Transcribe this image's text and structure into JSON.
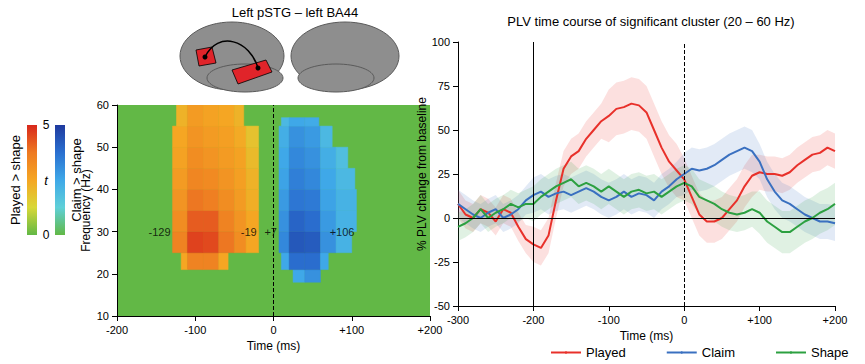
{
  "chart_data": [
    {
      "type": "heatmap",
      "title": "Left pSTG – left BA44",
      "x_label": "Time (ms)",
      "y_label": "Frequency (Hz)",
      "xlim": [
        -200,
        200
      ],
      "xticks": [
        -200,
        -100,
        0,
        {
          "value": 100,
          "label": "+100"
        },
        {
          "value": 200,
          "label": "+200"
        }
      ],
      "ylim": [
        10,
        60
      ],
      "yticks": [
        10,
        20,
        30,
        40,
        50,
        60
      ],
      "grid": false,
      "colorbar": {
        "title": "t",
        "range": [
          0,
          5
        ],
        "ticks": [
          0,
          5
        ]
      },
      "reference_lines": [
        {
          "x": 0,
          "line_style": "dashed"
        }
      ],
      "annotations": [
        {
          "x": -129,
          "y": 30,
          "text": "-129"
        },
        {
          "x": -19,
          "y": 30,
          "text": "-19"
        },
        {
          "x": 7,
          "y": 30,
          "text": "+7"
        },
        {
          "x": 106,
          "y": 30,
          "text": "+106"
        }
      ],
      "series": [
        {
          "name": "Played > shape",
          "cells": [
            [
              -118,
              -110,
              21,
              25,
              2.5
            ],
            [
              -110,
              -90,
              21,
              25,
              3.5
            ],
            [
              -90,
              -70,
              21,
              25,
              3.5
            ],
            [
              -70,
              -58,
              21,
              25,
              2.5
            ],
            [
              -129,
              -110,
              25,
              30,
              3.5
            ],
            [
              -110,
              -90,
              25,
              30,
              4.6
            ],
            [
              -90,
              -70,
              25,
              30,
              4.5
            ],
            [
              -70,
              -50,
              25,
              30,
              3.8
            ],
            [
              -50,
              -35,
              25,
              30,
              3.2
            ],
            [
              -35,
              -19,
              25,
              30,
              2.5
            ],
            [
              -129,
              -110,
              30,
              35,
              3.2
            ],
            [
              -110,
              -90,
              30,
              35,
              4.2
            ],
            [
              -90,
              -70,
              30,
              35,
              4.2
            ],
            [
              -70,
              -50,
              30,
              35,
              3.5
            ],
            [
              -50,
              -35,
              30,
              35,
              3.0
            ],
            [
              -35,
              -19,
              30,
              35,
              2.5
            ],
            [
              -129,
              -110,
              35,
              40,
              3.0
            ],
            [
              -110,
              -90,
              35,
              40,
              3.8
            ],
            [
              -90,
              -70,
              35,
              40,
              3.6
            ],
            [
              -70,
              -50,
              35,
              40,
              3.2
            ],
            [
              -50,
              -35,
              35,
              40,
              2.8
            ],
            [
              -35,
              -19,
              35,
              40,
              2.3
            ],
            [
              -129,
              -110,
              40,
              45,
              2.8
            ],
            [
              -110,
              -90,
              40,
              45,
              3.4
            ],
            [
              -90,
              -70,
              40,
              45,
              3.3
            ],
            [
              -70,
              -50,
              40,
              45,
              3.0
            ],
            [
              -50,
              -35,
              40,
              45,
              2.7
            ],
            [
              -35,
              -19,
              40,
              45,
              2.2
            ],
            [
              -129,
              -110,
              45,
              50,
              2.6
            ],
            [
              -110,
              -90,
              45,
              50,
              3.2
            ],
            [
              -90,
              -70,
              45,
              50,
              3.0
            ],
            [
              -70,
              -50,
              45,
              50,
              2.8
            ],
            [
              -50,
              -35,
              45,
              50,
              2.6
            ],
            [
              -35,
              -19,
              45,
              50,
              2.0
            ],
            [
              -129,
              -110,
              50,
              55,
              2.5
            ],
            [
              -110,
              -90,
              50,
              55,
              3.0
            ],
            [
              -90,
              -70,
              50,
              55,
              2.8
            ],
            [
              -70,
              -50,
              50,
              55,
              2.7
            ],
            [
              -50,
              -35,
              50,
              55,
              2.4
            ],
            [
              -35,
              -19,
              50,
              55,
              1.8
            ],
            [
              -124,
              -110,
              55,
              60,
              2.2
            ],
            [
              -110,
              -90,
              55,
              60,
              2.8
            ],
            [
              -90,
              -70,
              55,
              60,
              2.6
            ],
            [
              -70,
              -50,
              55,
              60,
              2.5
            ],
            [
              -50,
              -38,
              55,
              60,
              2.2
            ]
          ]
        },
        {
          "name": "Claim > shape",
          "cells": [
            [
              25,
              40,
              18,
              21,
              2.5
            ],
            [
              40,
              60,
              18,
              21,
              3.0
            ],
            [
              10,
              20,
              21,
              25,
              2.5
            ],
            [
              20,
              40,
              21,
              25,
              3.8
            ],
            [
              40,
              60,
              21,
              25,
              3.8
            ],
            [
              60,
              70,
              21,
              25,
              2.5
            ],
            [
              7,
              20,
              25,
              30,
              3.2
            ],
            [
              20,
              40,
              25,
              30,
              4.3
            ],
            [
              40,
              60,
              25,
              30,
              4.2
            ],
            [
              60,
              80,
              25,
              30,
              3.0
            ],
            [
              80,
              100,
              25,
              30,
              2.2
            ],
            [
              7,
              20,
              30,
              35,
              3.0
            ],
            [
              20,
              40,
              30,
              35,
              4.0
            ],
            [
              40,
              60,
              30,
              35,
              3.8
            ],
            [
              60,
              80,
              30,
              35,
              2.8
            ],
            [
              80,
              106,
              30,
              35,
              2.2
            ],
            [
              7,
              20,
              35,
              40,
              2.8
            ],
            [
              20,
              40,
              35,
              40,
              3.6
            ],
            [
              40,
              60,
              35,
              40,
              3.5
            ],
            [
              60,
              80,
              35,
              40,
              2.6
            ],
            [
              80,
              106,
              35,
              40,
              2.2
            ],
            [
              7,
              20,
              40,
              45,
              2.6
            ],
            [
              20,
              40,
              40,
              45,
              3.4
            ],
            [
              40,
              60,
              40,
              45,
              3.2
            ],
            [
              60,
              80,
              40,
              45,
              2.5
            ],
            [
              80,
              104,
              40,
              45,
              2.0
            ],
            [
              7,
              20,
              45,
              50,
              2.5
            ],
            [
              20,
              40,
              45,
              50,
              3.2
            ],
            [
              40,
              60,
              45,
              50,
              3.0
            ],
            [
              60,
              80,
              45,
              50,
              2.3
            ],
            [
              80,
              95,
              45,
              50,
              1.8
            ],
            [
              7,
              20,
              50,
              55,
              2.3
            ],
            [
              20,
              40,
              50,
              55,
              3.0
            ],
            [
              40,
              60,
              50,
              55,
              2.8
            ],
            [
              60,
              75,
              50,
              55,
              2.0
            ],
            [
              10,
              20,
              55,
              57,
              2.0
            ],
            [
              20,
              40,
              55,
              57,
              2.5
            ],
            [
              40,
              58,
              55,
              57,
              2.4
            ]
          ]
        }
      ]
    },
    {
      "type": "line",
      "title": "PLV time course of significant cluster (20 – 60 Hz)",
      "x_label": "Time (ms)",
      "y_label": "% PLV change from baseline",
      "xlim": [
        -300,
        200
      ],
      "xticks": [
        -300,
        -200,
        -100,
        0,
        {
          "value": 100,
          "label": "+100"
        },
        {
          "value": 200,
          "label": "+200"
        }
      ],
      "ylim": [
        -50,
        100
      ],
      "yticks": [
        -50,
        -25,
        0,
        25,
        50,
        75,
        100
      ],
      "grid": false,
      "legend": "bottom",
      "reference_lines": [
        {
          "x": -200,
          "line_style": "solid"
        },
        {
          "x": 0,
          "line_style": "dashed"
        },
        {
          "y": 0,
          "line_style": "solid"
        }
      ],
      "x": [
        -300,
        -290,
        -280,
        -270,
        -260,
        -250,
        -240,
        -230,
        -220,
        -210,
        -200,
        -190,
        -180,
        -170,
        -160,
        -150,
        -140,
        -130,
        -120,
        -110,
        -100,
        -90,
        -80,
        -70,
        -60,
        -50,
        -40,
        -30,
        -20,
        -10,
        0,
        10,
        20,
        30,
        40,
        50,
        60,
        70,
        80,
        90,
        100,
        110,
        120,
        130,
        140,
        150,
        160,
        170,
        180,
        190,
        200
      ],
      "series": [
        {
          "name": "Played",
          "color": "#e8302a",
          "values": [
            8,
            2,
            0,
            5,
            3,
            -2,
            5,
            3,
            -5,
            -12,
            -15,
            -17,
            -10,
            10,
            28,
            35,
            38,
            45,
            50,
            55,
            58,
            62,
            63,
            65,
            64,
            60,
            50,
            40,
            32,
            27,
            22,
            12,
            2,
            -2,
            -2,
            0,
            5,
            10,
            18,
            24,
            26,
            25,
            25,
            24,
            26,
            30,
            33,
            36,
            37,
            40,
            38
          ],
          "errors": [
            8,
            8,
            8,
            8,
            8,
            8,
            8,
            8,
            8,
            8,
            10,
            10,
            10,
            10,
            10,
            10,
            10,
            10,
            10,
            10,
            15,
            15,
            15,
            15,
            15,
            15,
            15,
            15,
            15,
            15,
            12,
            12,
            12,
            12,
            12,
            12,
            12,
            12,
            12,
            12,
            10,
            10,
            10,
            10,
            10,
            10,
            10,
            10,
            10,
            10,
            10
          ]
        },
        {
          "name": "Claim",
          "color": "#3a70c0",
          "values": [
            8,
            5,
            2,
            0,
            3,
            5,
            0,
            2,
            5,
            10,
            13,
            15,
            12,
            14,
            15,
            13,
            15,
            17,
            15,
            12,
            10,
            12,
            15,
            12,
            14,
            13,
            10,
            15,
            18,
            22,
            25,
            28,
            27,
            28,
            30,
            33,
            36,
            38,
            40,
            38,
            32,
            22,
            15,
            10,
            8,
            5,
            2,
            0,
            -2,
            -2,
            -3
          ],
          "errors": [
            8,
            8,
            8,
            8,
            8,
            8,
            8,
            8,
            8,
            8,
            10,
            10,
            10,
            10,
            10,
            10,
            10,
            10,
            10,
            10,
            10,
            10,
            10,
            10,
            10,
            10,
            10,
            10,
            10,
            10,
            12,
            12,
            12,
            12,
            12,
            12,
            12,
            12,
            12,
            12,
            10,
            10,
            10,
            10,
            10,
            10,
            10,
            10,
            10,
            10,
            10
          ]
        },
        {
          "name": "Shape",
          "color": "#2ca040",
          "values": [
            -5,
            -3,
            0,
            5,
            0,
            3,
            5,
            8,
            6,
            8,
            8,
            12,
            15,
            18,
            20,
            22,
            18,
            20,
            18,
            15,
            18,
            15,
            12,
            15,
            16,
            14,
            15,
            12,
            15,
            18,
            20,
            18,
            12,
            10,
            8,
            5,
            3,
            2,
            3,
            5,
            3,
            -2,
            -5,
            -8,
            -8,
            -5,
            -2,
            0,
            3,
            5,
            8
          ],
          "errors": [
            8,
            8,
            8,
            8,
            8,
            8,
            8,
            8,
            8,
            8,
            10,
            10,
            10,
            10,
            10,
            10,
            10,
            10,
            10,
            10,
            10,
            10,
            10,
            10,
            10,
            10,
            10,
            10,
            10,
            10,
            10,
            10,
            10,
            10,
            10,
            10,
            10,
            10,
            10,
            10,
            12,
            12,
            12,
            12,
            12,
            12,
            12,
            12,
            12,
            12,
            12
          ]
        }
      ]
    }
  ]
}
